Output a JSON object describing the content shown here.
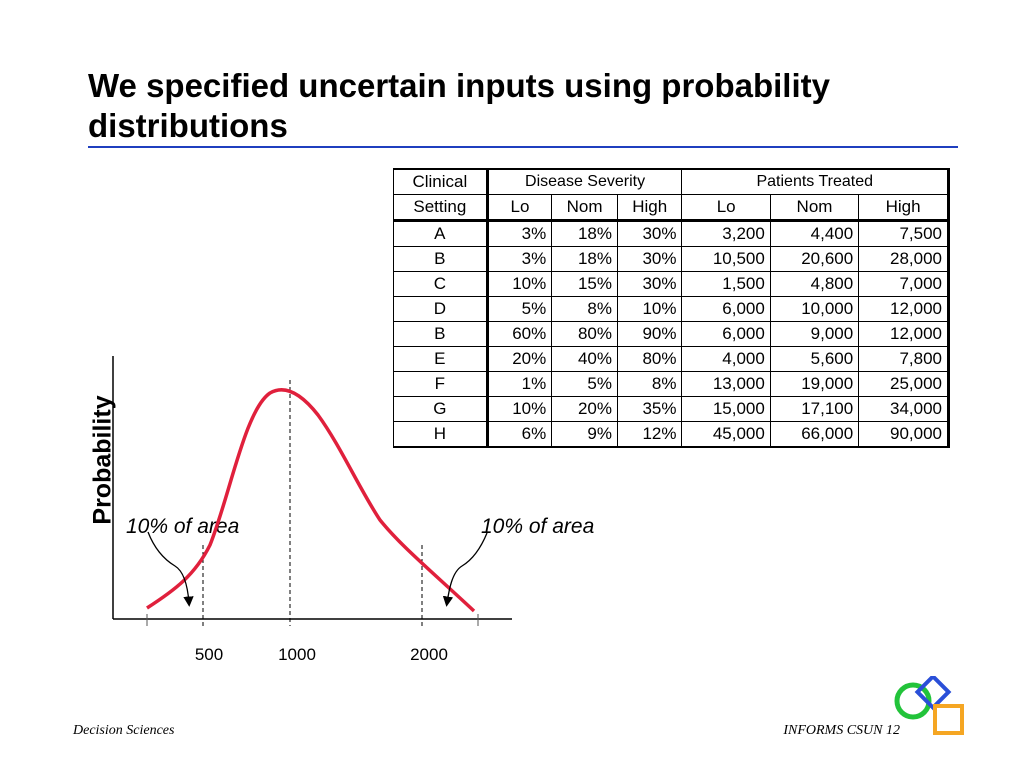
{
  "slide": {
    "title": "We specified uncertain inputs using probability distributions",
    "footer_left": "Decision Sciences",
    "footer_right": "INFORMS CSUN  12"
  },
  "table": {
    "header_setting_1": "Clinical",
    "header_setting_2": "Setting",
    "group_severity": "Disease Severity",
    "group_patients": "Patients Treated",
    "subheaders": [
      "Lo",
      "Nom",
      "High",
      "Lo",
      "Nom",
      "High"
    ],
    "rows": [
      [
        "A",
        "3%",
        "18%",
        "30%",
        "3,200",
        "4,400",
        "7,500"
      ],
      [
        "B",
        "3%",
        "18%",
        "30%",
        "10,500",
        "20,600",
        "28,000"
      ],
      [
        "C",
        "10%",
        "15%",
        "30%",
        "1,500",
        "4,800",
        "7,000"
      ],
      [
        "D",
        "5%",
        "8%",
        "10%",
        "6,000",
        "10,000",
        "12,000"
      ],
      [
        "B",
        "60%",
        "80%",
        "90%",
        "6,000",
        "9,000",
        "12,000"
      ],
      [
        "E",
        "20%",
        "40%",
        "80%",
        "4,000",
        "5,600",
        "7,800"
      ],
      [
        "F",
        "1%",
        "5%",
        "8%",
        "13,000",
        "19,000",
        "25,000"
      ],
      [
        "G",
        "10%",
        "20%",
        "35%",
        "15,000",
        "17,100",
        "34,000"
      ],
      [
        "H",
        "6%",
        "9%",
        "12%",
        "45,000",
        "66,000",
        "90,000"
      ]
    ]
  },
  "chart_data": {
    "type": "line",
    "ylabel": "Probability",
    "xlabel": "",
    "x_ticks": [
      "500",
      "1000",
      "2000"
    ],
    "marker_values": [
      500,
      1000,
      2000
    ],
    "annotations": [
      "10% of area",
      "10% of area"
    ],
    "curve_color": "#e0203c",
    "grid": false
  }
}
